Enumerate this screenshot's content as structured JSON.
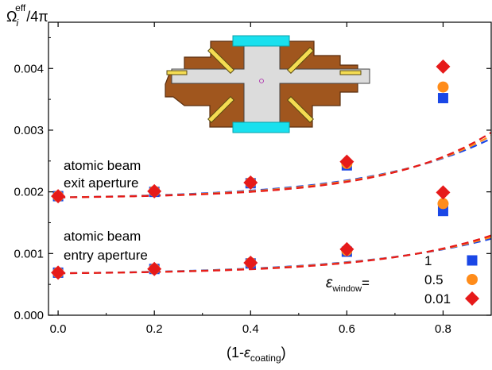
{
  "chart_data": {
    "type": "scatter",
    "ylabel": {
      "main": "Ω",
      "sub": "i",
      "sup": "eff",
      "rest": "/4π"
    },
    "xlabel": {
      "pre": "(1-",
      "sym": "ε",
      "sub": "coating",
      "post": ")"
    },
    "xlim": [
      -0.02,
      0.9
    ],
    "ylim": [
      0,
      0.00475
    ],
    "xticks": [
      "0.0",
      "0.2",
      "0.4",
      "0.6",
      "0.8"
    ],
    "xtick_values": [
      0.0,
      0.2,
      0.4,
      0.6,
      0.8
    ],
    "yticks": [
      "0.000",
      "0.001",
      "0.002",
      "0.003",
      "0.004"
    ],
    "ytick_values": [
      0.0,
      0.001,
      0.002,
      0.003,
      0.004
    ],
    "grid": false,
    "legend": {
      "position": "bottom-right",
      "title_sym": "ε",
      "title_sub": "window",
      "title_eq": "=",
      "entries": [
        {
          "label": "1",
          "color": "#1a47e6",
          "marker": "square"
        },
        {
          "label": "0.5",
          "color": "#ff8c1a",
          "marker": "circle"
        },
        {
          "label": "0.01",
          "color": "#e61a1a",
          "marker": "diamond"
        }
      ]
    },
    "annotations": [
      {
        "lines": [
          "atomic beam",
          "exit aperture"
        ]
      },
      {
        "lines": [
          "atomic beam",
          "entry aperture"
        ]
      }
    ],
    "groups": [
      {
        "id": "exit",
        "series": [
          {
            "window": "1",
            "color": "#1a47e6",
            "marker": "square",
            "x": [
              0.0,
              0.2,
              0.4,
              0.6,
              0.8
            ],
            "y": [
              0.00193,
              0.002,
              0.00214,
              0.00243,
              0.00352
            ],
            "fit": [
              0.00191,
              0.00046,
              3.9
            ]
          },
          {
            "window": "0.5",
            "color": "#ff8c1a",
            "marker": "circle",
            "x": [
              0.0,
              0.2,
              0.4,
              0.6,
              0.8
            ],
            "y": [
              0.00193,
              0.00201,
              0.00215,
              0.00246,
              0.0037
            ],
            "fit": [
              0.00191,
              0.00044,
              4.25
            ]
          },
          {
            "window": "0.01",
            "color": "#e61a1a",
            "marker": "diamond",
            "x": [
              0.0,
              0.2,
              0.4,
              0.6,
              0.8
            ],
            "y": [
              0.00193,
              0.00201,
              0.00215,
              0.00249,
              0.00403
            ],
            "fit": [
              0.00191,
              0.00042,
              4.6
            ]
          }
        ]
      },
      {
        "id": "entry",
        "series": [
          {
            "window": "1",
            "color": "#1a47e6",
            "marker": "square",
            "x": [
              0.0,
              0.2,
              0.4,
              0.6,
              0.8
            ],
            "y": [
              0.00069,
              0.00075,
              0.00084,
              0.00103,
              0.00169
            ],
            "fit": [
              0.00068,
              0.0003,
              3.5
            ]
          },
          {
            "window": "0.5",
            "color": "#ff8c1a",
            "marker": "circle",
            "x": [
              0.0,
              0.2,
              0.4,
              0.6,
              0.8
            ],
            "y": [
              0.00069,
              0.00075,
              0.00085,
              0.00105,
              0.00181
            ],
            "fit": [
              0.00068,
              0.00029,
              3.8
            ]
          },
          {
            "window": "0.01",
            "color": "#e61a1a",
            "marker": "diamond",
            "x": [
              0.0,
              0.2,
              0.4,
              0.6,
              0.8
            ],
            "y": [
              0.00069,
              0.00075,
              0.00085,
              0.00107,
              0.00199
            ],
            "fit": [
              0.00068,
              0.00028,
              4.1
            ]
          }
        ]
      }
    ]
  }
}
